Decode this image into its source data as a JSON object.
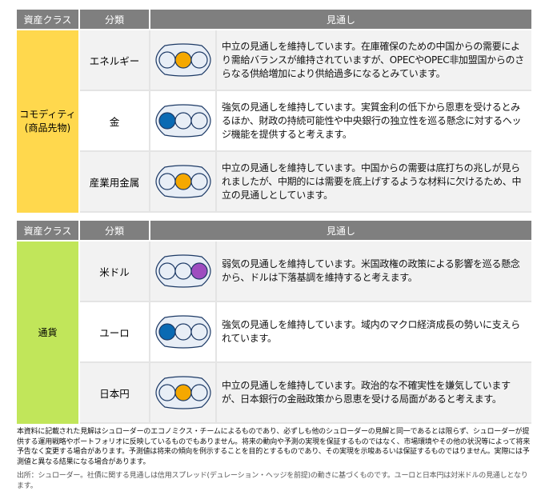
{
  "colors": {
    "header": "#7f7f7f",
    "commodity": "#ffd84d",
    "currency": "#c1e65a",
    "bullish": "#0a6ab3",
    "neutral": "#f5a800",
    "bearish": "#9e4dbf",
    "lamp_off": "#e8eef6"
  },
  "tables": [
    {
      "headers": [
        "資産クラス",
        "分類",
        "見通し"
      ],
      "asset_class": "コモディティ\n(商品先物)",
      "rows": [
        {
          "category": "エネルギー",
          "signal": "neutral",
          "text": "中立の見通しを維持しています。在庫確保のための中国からの需要により需給バランスが維持されていますが、OPECやOPEC非加盟国からのさらなる供給増加により供給過多になるとみています。"
        },
        {
          "category": "金",
          "signal": "bullish",
          "text": "強気の見通しを維持しています。実質金利の低下から恩恵を受けるとみるほか、財政の持続可能性や中央銀行の独立性を巡る懸念に対するヘッジ機能を提供すると考えます。"
        },
        {
          "category": "産業用金属",
          "signal": "neutral",
          "text": "中立の見通しを維持しています。中国からの需要は底打ちの兆しが見られましたが、中期的には需要を底上げするような材料に欠けるため、中立の見通しとしています。"
        }
      ]
    },
    {
      "headers": [
        "資産クラス",
        "分類",
        "見通し"
      ],
      "asset_class": "通貨",
      "rows": [
        {
          "category": "米ドル",
          "signal": "bearish",
          "text": "弱気の見通しを維持しています。米国政権の政策による影響を巡る懸念から、ドルは下落基調を維持すると考えます。"
        },
        {
          "category": "ユーロ",
          "signal": "bullish",
          "text": "強気の見通しを維持しています。域内のマクロ経済成長の勢いに支えられています。"
        },
        {
          "category": "日本円",
          "signal": "neutral",
          "text": "中立の見通しを維持しています。政治的な不確実性を嫌気していますが、日本銀行の金融政策から恩恵を受ける局面があると考えます。"
        }
      ]
    }
  ],
  "notes": {
    "disclaimer": "本資料に記載された見解はシュローダーのエコノミクス・チームによるものであり、必ずしも他のシュローダーの見解と同一であるとは限らず、シュローダーが提供する運用戦略やポートフォリオに反映しているものでもありません。将来の動向や予測の実現を保証するものではなく、市場環境やその他の状況等によって将来予告なく変更する場合があります。予測値は将来の傾向を例示することを目的とするものであり、その実現を示唆あるいは保証するものではりません。実際には予測値と異なる結果になる場合があります。",
    "source": "出所：シュローダー。社債に関する見通しは信用スプレッド(デュレーション・ヘッジを前提)の動きに基づくものです。ユーロと日本円は対米ドルの見通しとなります。"
  }
}
